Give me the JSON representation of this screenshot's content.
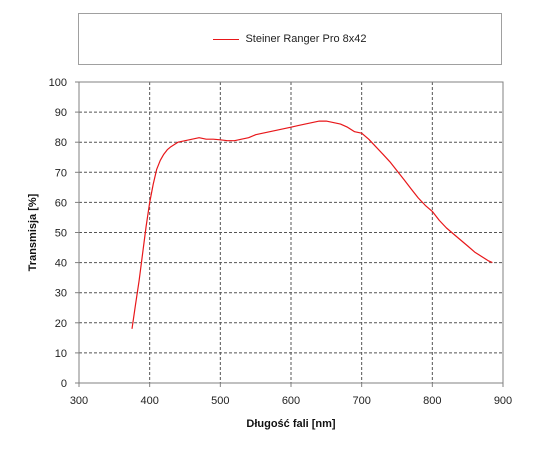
{
  "chart_data": {
    "type": "line",
    "xlabel": "Długość fali [nm]",
    "ylabel": "Transmisja [%]",
    "xlim": [
      300,
      900
    ],
    "ylim": [
      0,
      100
    ],
    "xticks": [
      300,
      400,
      500,
      600,
      700,
      800,
      900
    ],
    "yticks": [
      0,
      10,
      20,
      30,
      40,
      50,
      60,
      70,
      80,
      90,
      100
    ],
    "grid": true,
    "legend_position": "top",
    "series": [
      {
        "name": "Steiner Ranger Pro 8x42",
        "color": "#e8171a",
        "x": [
          375,
          380,
          385,
          390,
          395,
          400,
          405,
          410,
          415,
          420,
          425,
          430,
          440,
          450,
          460,
          470,
          480,
          490,
          500,
          510,
          520,
          530,
          540,
          550,
          560,
          570,
          580,
          590,
          600,
          610,
          620,
          630,
          640,
          650,
          660,
          670,
          680,
          690,
          700,
          710,
          720,
          730,
          740,
          750,
          760,
          770,
          780,
          790,
          800,
          810,
          820,
          830,
          840,
          850,
          860,
          870,
          880,
          885
        ],
        "y": [
          18,
          26,
          34,
          43,
          52,
          60,
          66,
          71,
          74,
          76,
          77.5,
          78.5,
          80,
          80.5,
          81,
          81.5,
          81,
          81,
          80.8,
          80.5,
          80.5,
          81,
          81.5,
          82.5,
          83,
          83.5,
          84,
          84.5,
          85,
          85.5,
          86,
          86.5,
          87,
          87,
          86.5,
          86,
          85,
          83.5,
          83,
          81,
          78.5,
          76,
          73.5,
          70.5,
          67.5,
          64.5,
          61.5,
          59,
          57,
          54,
          51.5,
          49.5,
          47.5,
          45.5,
          43.5,
          42,
          40.5,
          40
        ]
      }
    ]
  }
}
